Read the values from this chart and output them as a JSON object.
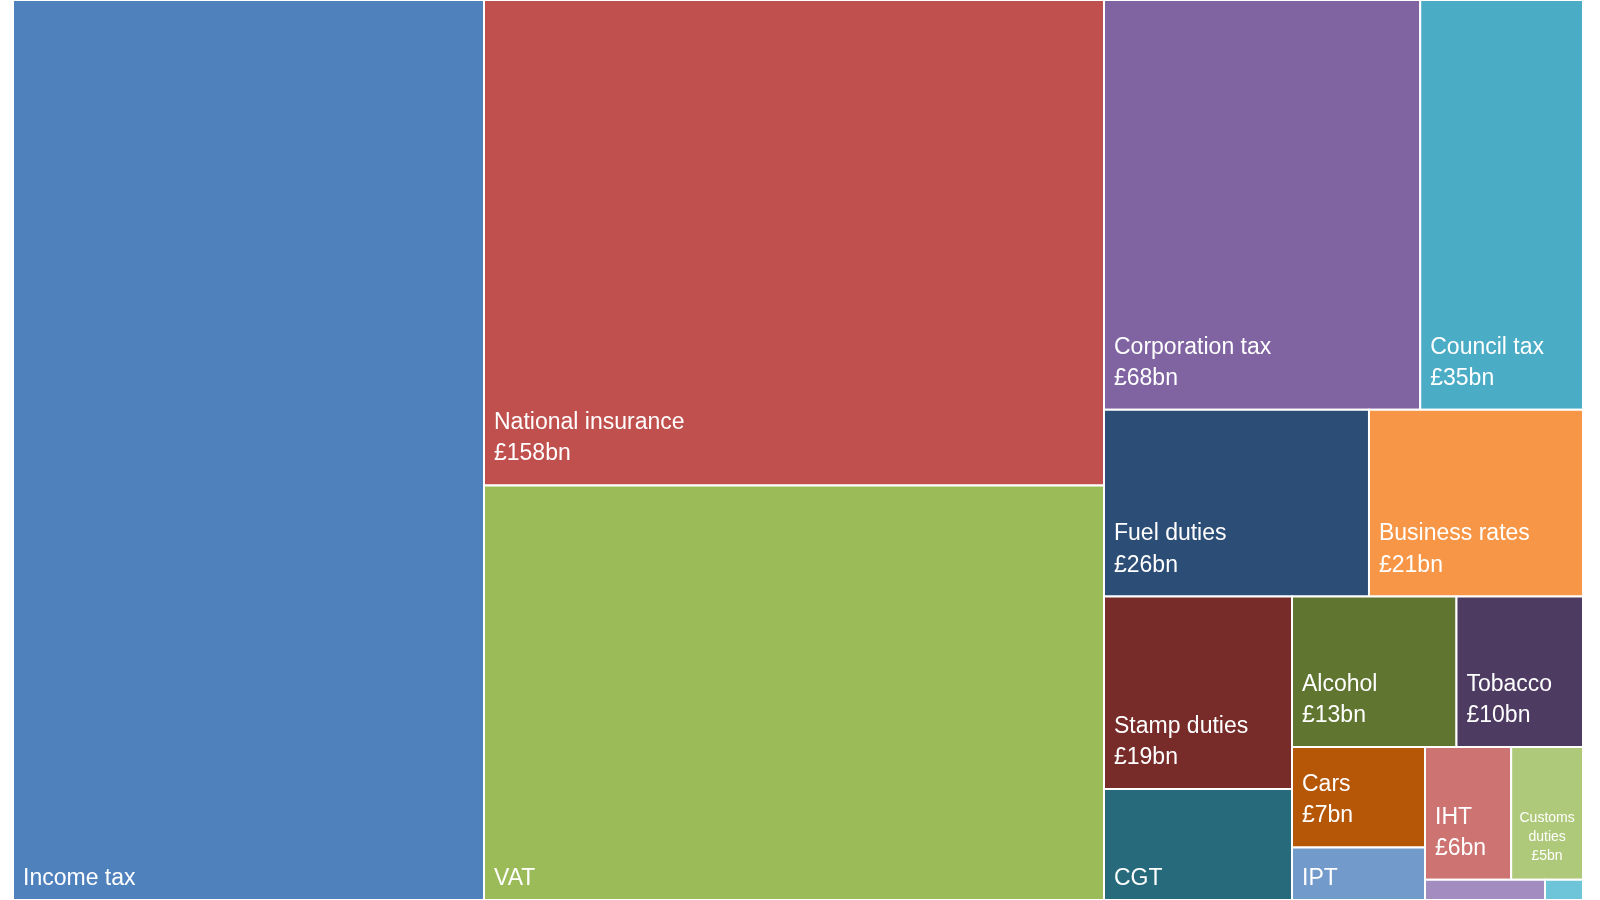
{
  "chart_data": {
    "type": "other",
    "categories": [
      "Income tax",
      "National insurance",
      "VAT",
      "Corporation tax",
      "Council tax",
      "Fuel duties",
      "Business rates",
      "Stamp duties",
      "CGT",
      "Alcohol",
      "Tobacco",
      "Cars",
      "IPT",
      "IHT",
      "Customs duties",
      null,
      null
    ],
    "values": [
      null,
      158,
      null,
      68,
      35,
      26,
      21,
      19,
      null,
      13,
      10,
      7,
      null,
      6,
      5,
      null,
      null
    ],
    "value_labels": [
      null,
      "£158bn",
      null,
      "£68bn",
      "£35bn",
      "£26bn",
      "£21bn",
      "£19bn",
      null,
      "£13bn",
      "£10bn",
      "£7bn",
      null,
      "£6bn",
      "£5bn",
      null,
      null
    ],
    "colors": [
      "#4f81bd",
      "#c0504d",
      "#9bbb59",
      "#8064a2",
      "#4bacc6",
      "#2c4d75",
      "#f79646",
      "#772c2a",
      "#276a7c",
      "#5f7530",
      "#4d3b62",
      "#b65708",
      "#729aca",
      "#cd7371",
      "#afc97a",
      "#a28cc0",
      "#6ec4d9"
    ]
  }
}
